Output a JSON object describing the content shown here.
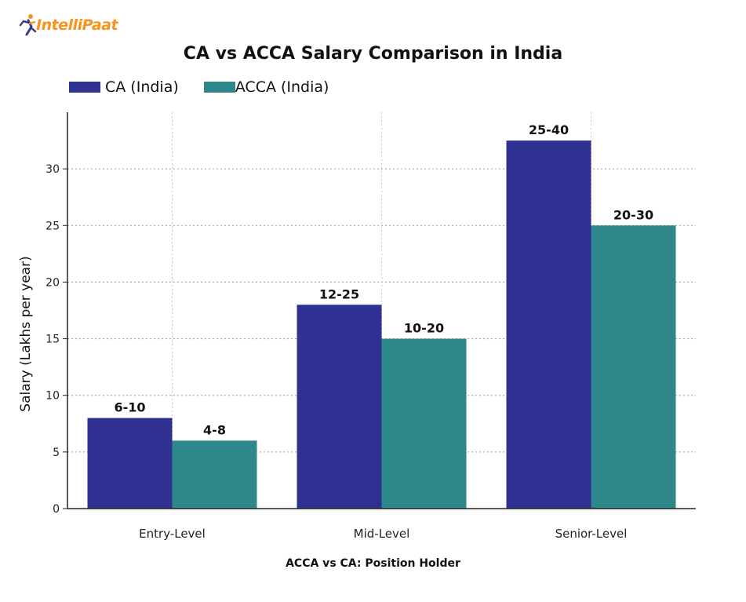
{
  "brand": {
    "name": "IntelliPaat",
    "color": "#f7941d",
    "accent": "#3a3a8f"
  },
  "chart_data": {
    "type": "bar",
    "title": "CA vs ACCA Salary Comparison in India",
    "xlabel": "ACCA vs CA: Position Holder",
    "ylabel": "Salary (Lakhs per year)",
    "categories": [
      "Entry-Level",
      "Mid-Level",
      "Senior-Level"
    ],
    "series": [
      {
        "name": "CA (India)",
        "color": "#2e3192",
        "values": [
          8,
          18,
          32.5
        ],
        "labels": [
          "6-10",
          "12-25",
          "25-40"
        ]
      },
      {
        "name": "ACCA (India)",
        "color": "#2e878a",
        "values": [
          6,
          15,
          25
        ],
        "labels": [
          "4-8",
          "10-20",
          "20-30"
        ]
      }
    ],
    "yticks": [
      0,
      5,
      10,
      15,
      20,
      25,
      30
    ],
    "ylim": [
      0,
      35
    ],
    "grid": true,
    "legend": "top-left"
  }
}
